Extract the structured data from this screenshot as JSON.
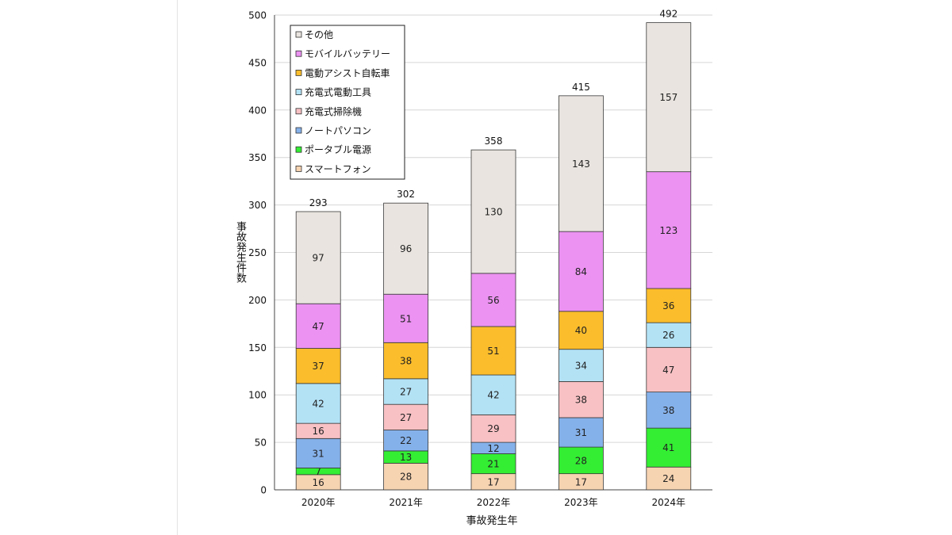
{
  "chart_data": {
    "type": "bar",
    "stacked": true,
    "title": "",
    "xlabel": "事故発生年",
    "ylabel": "事故発生件数",
    "ylim": [
      0,
      500
    ],
    "yticks": [
      0,
      50,
      100,
      150,
      200,
      250,
      300,
      350,
      400,
      450,
      500
    ],
    "grid": true,
    "legend_position": "top-left",
    "categories": [
      "2020年",
      "2021年",
      "2022年",
      "2023年",
      "2024年"
    ],
    "totals": [
      293,
      302,
      358,
      415,
      492
    ],
    "series": [
      {
        "name": "スマートフォン",
        "color": "#f6d3b1",
        "values": [
          16,
          28,
          17,
          17,
          24
        ]
      },
      {
        "name": "ポータブル電源",
        "color": "#33ee33",
        "values": [
          7,
          13,
          21,
          28,
          41
        ]
      },
      {
        "name": "ノートパソコン",
        "color": "#85b1ea",
        "values": [
          31,
          22,
          12,
          31,
          38
        ]
      },
      {
        "name": "充電式掃除機",
        "color": "#f8c1c4",
        "values": [
          16,
          27,
          29,
          38,
          47
        ]
      },
      {
        "name": "充電式電動工具",
        "color": "#b3e2f5",
        "values": [
          42,
          27,
          42,
          34,
          26
        ]
      },
      {
        "name": "電動アシスト自転車",
        "color": "#fbbd2b",
        "values": [
          37,
          38,
          51,
          40,
          36
        ]
      },
      {
        "name": "モバイルバッテリー",
        "color": "#ec92f2",
        "values": [
          47,
          51,
          56,
          84,
          123
        ]
      },
      {
        "name": "その他",
        "color": "#e9e4df",
        "values": [
          97,
          96,
          130,
          143,
          157
        ]
      }
    ],
    "legend_order": [
      "その他",
      "モバイルバッテリー",
      "電動アシスト自転車",
      "充電式電動工具",
      "充電式掃除機",
      "ノートパソコン",
      "ポータブル電源",
      "スマートフォン"
    ]
  }
}
